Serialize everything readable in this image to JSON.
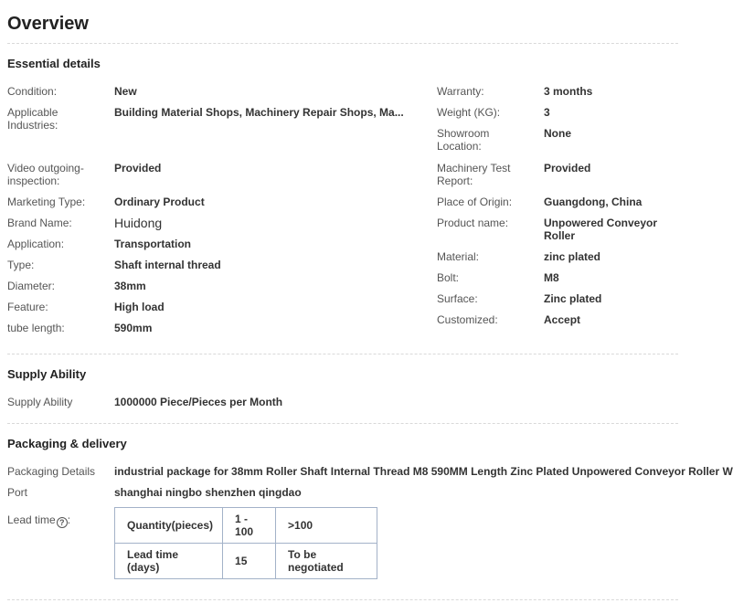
{
  "page": {
    "title": "Overview"
  },
  "colors": {
    "heading": "#222222",
    "label": "#555555",
    "value": "#333333",
    "table_border": "#a3b2c8",
    "divider": "#d9d9d9"
  },
  "essential": {
    "heading": "Essential details",
    "left": [
      {
        "label": "Condition:",
        "value": "New"
      },
      {
        "label": "Applicable Industries:",
        "value": "Building Material Shops, Machinery Repair Shops, Ma..."
      },
      {
        "label": "Video outgoing-inspection:",
        "value": "Provided"
      },
      {
        "label": "Marketing Type:",
        "value": "Ordinary Product"
      },
      {
        "label": "Brand Name:",
        "value": "Huidong"
      },
      {
        "label": "Application:",
        "value": "Transportation"
      },
      {
        "label": "Type:",
        "value": "Shaft internal thread"
      },
      {
        "label": "Diameter:",
        "value": "38mm"
      },
      {
        "label": "Feature:",
        "value": "High load"
      },
      {
        "label": "tube length:",
        "value": "590mm"
      }
    ],
    "right": [
      {
        "label": "Warranty:",
        "value": "3 months"
      },
      {
        "label": "Weight (KG):",
        "value": "3"
      },
      {
        "label": "Showroom Location:",
        "value": "None"
      },
      {
        "label": "Machinery Test Report:",
        "value": "Provided"
      },
      {
        "label": "Place of Origin:",
        "value": "Guangdong, China"
      },
      {
        "label": "Product name:",
        "value": "Unpowered Conveyor Roller"
      },
      {
        "label": "Material:",
        "value": "zinc plated"
      },
      {
        "label": "Bolt:",
        "value": "M8"
      },
      {
        "label": "Surface:",
        "value": "Zinc plated"
      },
      {
        "label": "Customized:",
        "value": "Accept"
      }
    ]
  },
  "supply": {
    "heading": "Supply Ability",
    "label": "Supply Ability",
    "value": "1000000 Piece/Pieces per Month"
  },
  "packaging": {
    "heading": "Packaging & delivery",
    "details_label": "Packaging Details",
    "details_value": "industrial package for 38mm Roller Shaft Internal Thread M8 590MM Length Zinc Plated Unpowered Conveyor Roller W",
    "port_label": "Port",
    "port_value": "shanghai ningbo shenzhen qingdao",
    "lead_time_label": "Lead time",
    "lead_time_colon": ":",
    "help_icon_glyph": "?",
    "lead_table": {
      "rows": [
        [
          "Quantity(pieces)",
          "1 - 100",
          ">100"
        ],
        [
          "Lead time (days)",
          "15",
          "To be negotiated"
        ]
      ]
    }
  }
}
